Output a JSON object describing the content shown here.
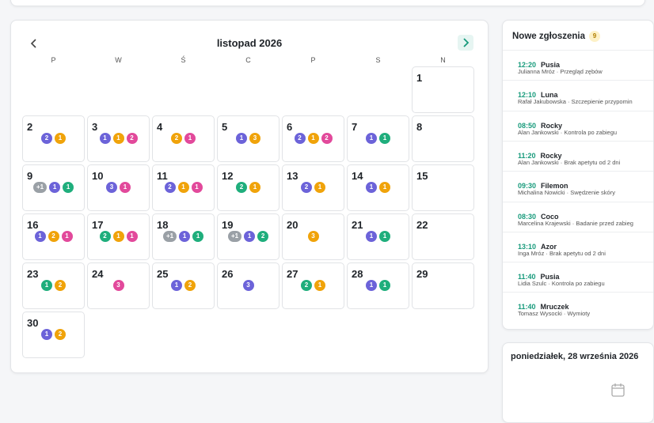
{
  "calendar": {
    "title": "listopad 2026",
    "weekdays": [
      "P",
      "W",
      "Ś",
      "C",
      "P",
      "S",
      "N"
    ],
    "days": [
      {
        "day": 1,
        "badges": []
      },
      {
        "day": 2,
        "badges": [
          {
            "label": 2,
            "color": "#6c63d9"
          },
          {
            "label": 1,
            "color": "#f0a30a"
          }
        ]
      },
      {
        "day": 3,
        "badges": [
          {
            "label": 1,
            "color": "#6c63d9"
          },
          {
            "label": 1,
            "color": "#f0a30a"
          },
          {
            "label": 2,
            "color": "#e2499b"
          }
        ]
      },
      {
        "day": 4,
        "badges": [
          {
            "label": 2,
            "color": "#f0a30a"
          },
          {
            "label": 1,
            "color": "#e2499b"
          }
        ]
      },
      {
        "day": 5,
        "badges": [
          {
            "label": 1,
            "color": "#6c63d9"
          },
          {
            "label": 3,
            "color": "#f0a30a"
          }
        ]
      },
      {
        "day": 6,
        "badges": [
          {
            "label": 2,
            "color": "#6c63d9"
          },
          {
            "label": 1,
            "color": "#f0a30a"
          },
          {
            "label": 2,
            "color": "#e2499b"
          }
        ]
      },
      {
        "day": 7,
        "badges": [
          {
            "label": 1,
            "color": "#6c63d9"
          },
          {
            "label": 1,
            "color": "#1fae7c"
          }
        ]
      },
      {
        "day": 8,
        "badges": []
      },
      {
        "day": 9,
        "badges": [
          {
            "label": "+1",
            "color": "#9aa0a6"
          },
          {
            "label": 1,
            "color": "#6c63d9"
          },
          {
            "label": 1,
            "color": "#1fae7c"
          }
        ]
      },
      {
        "day": 10,
        "badges": [
          {
            "label": 3,
            "color": "#6c63d9"
          },
          {
            "label": 1,
            "color": "#e2499b"
          }
        ]
      },
      {
        "day": 11,
        "badges": [
          {
            "label": 2,
            "color": "#6c63d9"
          },
          {
            "label": 1,
            "color": "#f0a30a"
          },
          {
            "label": 1,
            "color": "#e2499b"
          }
        ]
      },
      {
        "day": 12,
        "badges": [
          {
            "label": 2,
            "color": "#1fae7c"
          },
          {
            "label": 1,
            "color": "#f0a30a"
          }
        ]
      },
      {
        "day": 13,
        "badges": [
          {
            "label": 2,
            "color": "#6c63d9"
          },
          {
            "label": 1,
            "color": "#f0a30a"
          }
        ]
      },
      {
        "day": 14,
        "badges": [
          {
            "label": 1,
            "color": "#6c63d9"
          },
          {
            "label": 1,
            "color": "#f0a30a"
          }
        ]
      },
      {
        "day": 15,
        "badges": []
      },
      {
        "day": 16,
        "badges": [
          {
            "label": 1,
            "color": "#6c63d9"
          },
          {
            "label": 2,
            "color": "#f0a30a"
          },
          {
            "label": 1,
            "color": "#e2499b"
          }
        ]
      },
      {
        "day": 17,
        "badges": [
          {
            "label": 2,
            "color": "#1fae7c"
          },
          {
            "label": 1,
            "color": "#f0a30a"
          },
          {
            "label": 1,
            "color": "#e2499b"
          }
        ]
      },
      {
        "day": 18,
        "badges": [
          {
            "label": "+1",
            "color": "#9aa0a6"
          },
          {
            "label": 1,
            "color": "#6c63d9"
          },
          {
            "label": 1,
            "color": "#1fae7c"
          }
        ]
      },
      {
        "day": 19,
        "badges": [
          {
            "label": "+1",
            "color": "#9aa0a6"
          },
          {
            "label": 1,
            "color": "#6c63d9"
          },
          {
            "label": 2,
            "color": "#1fae7c"
          }
        ]
      },
      {
        "day": 20,
        "badges": [
          {
            "label": 3,
            "color": "#f0a30a"
          }
        ]
      },
      {
        "day": 21,
        "badges": [
          {
            "label": 1,
            "color": "#6c63d9"
          },
          {
            "label": 1,
            "color": "#1fae7c"
          }
        ]
      },
      {
        "day": 22,
        "badges": []
      },
      {
        "day": 23,
        "badges": [
          {
            "label": 1,
            "color": "#1fae7c"
          },
          {
            "label": 2,
            "color": "#f0a30a"
          }
        ]
      },
      {
        "day": 24,
        "badges": [
          {
            "label": 3,
            "color": "#e2499b"
          }
        ]
      },
      {
        "day": 25,
        "badges": [
          {
            "label": 1,
            "color": "#6c63d9"
          },
          {
            "label": 2,
            "color": "#f0a30a"
          }
        ]
      },
      {
        "day": 26,
        "badges": [
          {
            "label": 3,
            "color": "#6c63d9"
          }
        ]
      },
      {
        "day": 27,
        "badges": [
          {
            "label": 2,
            "color": "#1fae7c"
          },
          {
            "label": 1,
            "color": "#f0a30a"
          }
        ]
      },
      {
        "day": 28,
        "badges": [
          {
            "label": 1,
            "color": "#6c63d9"
          },
          {
            "label": 1,
            "color": "#1fae7c"
          }
        ]
      },
      {
        "day": 29,
        "badges": []
      },
      {
        "day": 30,
        "badges": [
          {
            "label": 1,
            "color": "#6c63d9"
          },
          {
            "label": 2,
            "color": "#f0a30a"
          }
        ]
      }
    ]
  },
  "requests": {
    "title": "Nowe zgłoszenia",
    "count": 9,
    "items": [
      {
        "time": "12:20",
        "name": "Pusia",
        "detail": "Julianna Mróz · Przegląd zębów"
      },
      {
        "time": "12:10",
        "name": "Luna",
        "detail": "Rafał Jakubowska · Szczepienie przypomin"
      },
      {
        "time": "08:50",
        "name": "Rocky",
        "detail": "Alan Jankowski · Kontrola po zabiegu"
      },
      {
        "time": "11:20",
        "name": "Rocky",
        "detail": "Alan Jankowski · Brak apetytu od 2 dni"
      },
      {
        "time": "09:30",
        "name": "Filemon",
        "detail": "Michalina Nowicki · Swędzenie skóry"
      },
      {
        "time": "08:30",
        "name": "Coco",
        "detail": "Marcelina Krajewski · Badanie przed zabieg"
      },
      {
        "time": "13:10",
        "name": "Azor",
        "detail": "Inga Mróz · Brak apetytu od 2 dni"
      },
      {
        "time": "11:40",
        "name": "Pusia",
        "detail": "Lidia Szulc · Kontrola po zabiegu"
      },
      {
        "time": "11:40",
        "name": "Mruczek",
        "detail": "Tomasz Wysocki · Wymioty"
      }
    ]
  },
  "day_panel": {
    "title": "poniedziałek, 28 września 2026"
  }
}
